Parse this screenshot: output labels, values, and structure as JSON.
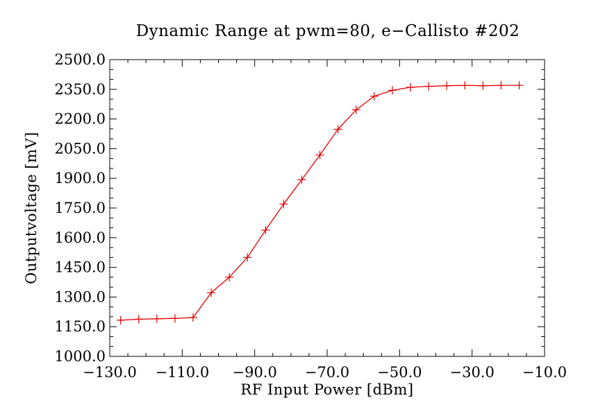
{
  "chart_data": {
    "type": "line",
    "title": "Dynamic Range at pwm=80, e−Callisto #202",
    "xlabel": "RF Input Power [dBm]",
    "ylabel": "Outputvoltage [mV]",
    "xlim": [
      -130,
      -10
    ],
    "ylim": [
      1000,
      2500
    ],
    "xticks": [
      -130,
      -110,
      -90,
      -70,
      -50,
      -30,
      -10
    ],
    "xtick_labels": [
      "−130.0",
      "−110.0",
      "−90.0",
      "−70.0",
      "−50.0",
      "−30.0",
      "−10.0"
    ],
    "yticks": [
      1000,
      1150,
      1300,
      1450,
      1600,
      1750,
      1900,
      2050,
      2200,
      2350,
      2500
    ],
    "ytick_labels": [
      "1000.0",
      "1150.0",
      "1300.0",
      "1450.0",
      "1600.0",
      "1750.0",
      "1900.0",
      "2050.0",
      "2200.0",
      "2350.0",
      "2500.0"
    ],
    "grid": false,
    "series": [
      {
        "color": "#e00000",
        "marker": "plus",
        "x": [
          -127,
          -122,
          -117,
          -112,
          -107,
          -102,
          -97,
          -92,
          -87,
          -82,
          -77,
          -72,
          -67,
          -62,
          -57,
          -52,
          -47,
          -42,
          -37,
          -32,
          -27,
          -22,
          -17
        ],
        "y": [
          1183,
          1188,
          1190,
          1192,
          1196,
          1322,
          1400,
          1500,
          1638,
          1770,
          1893,
          2018,
          2148,
          2246,
          2315,
          2345,
          2360,
          2365,
          2368,
          2370,
          2368,
          2370,
          2370
        ]
      }
    ]
  }
}
